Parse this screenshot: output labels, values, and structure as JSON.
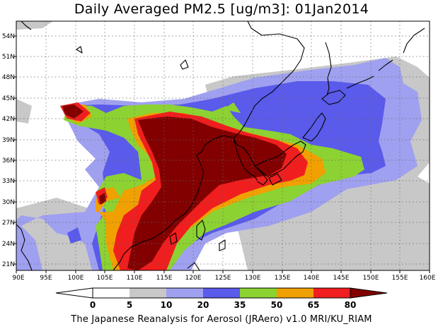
{
  "title": "Daily Averaged PM2.5 [ug/m3]: 01Jan2014",
  "footer": "The Japanese Reanalysis for Aerosol (JRAero) v1.0 MRI/KU_RIAM",
  "map": {
    "lon_range": [
      90,
      160
    ],
    "lat_range": [
      19.5,
      55.5
    ],
    "lon_ticks": [
      "90E",
      "95E",
      "100E",
      "105E",
      "110E",
      "115E",
      "120E",
      "125E",
      "130E",
      "135E",
      "140E",
      "145E",
      "150E",
      "155E",
      "160E"
    ],
    "lat_ticks": [
      "21N",
      "24N",
      "27N",
      "30N",
      "33N",
      "36N",
      "39N",
      "42N",
      "45N",
      "48N",
      "51N",
      "54N"
    ],
    "grid": true,
    "grid_style": "dotted"
  },
  "colorbar": {
    "labels": [
      "0",
      "5",
      "10",
      "20",
      "35",
      "50",
      "65",
      "80"
    ],
    "colors": [
      "#ffffff",
      "#c8c8c8",
      "#a0a0f0",
      "#5a5aeb",
      "#8cd232",
      "#f0a000",
      "#f01e1e",
      "#820000"
    ]
  }
}
